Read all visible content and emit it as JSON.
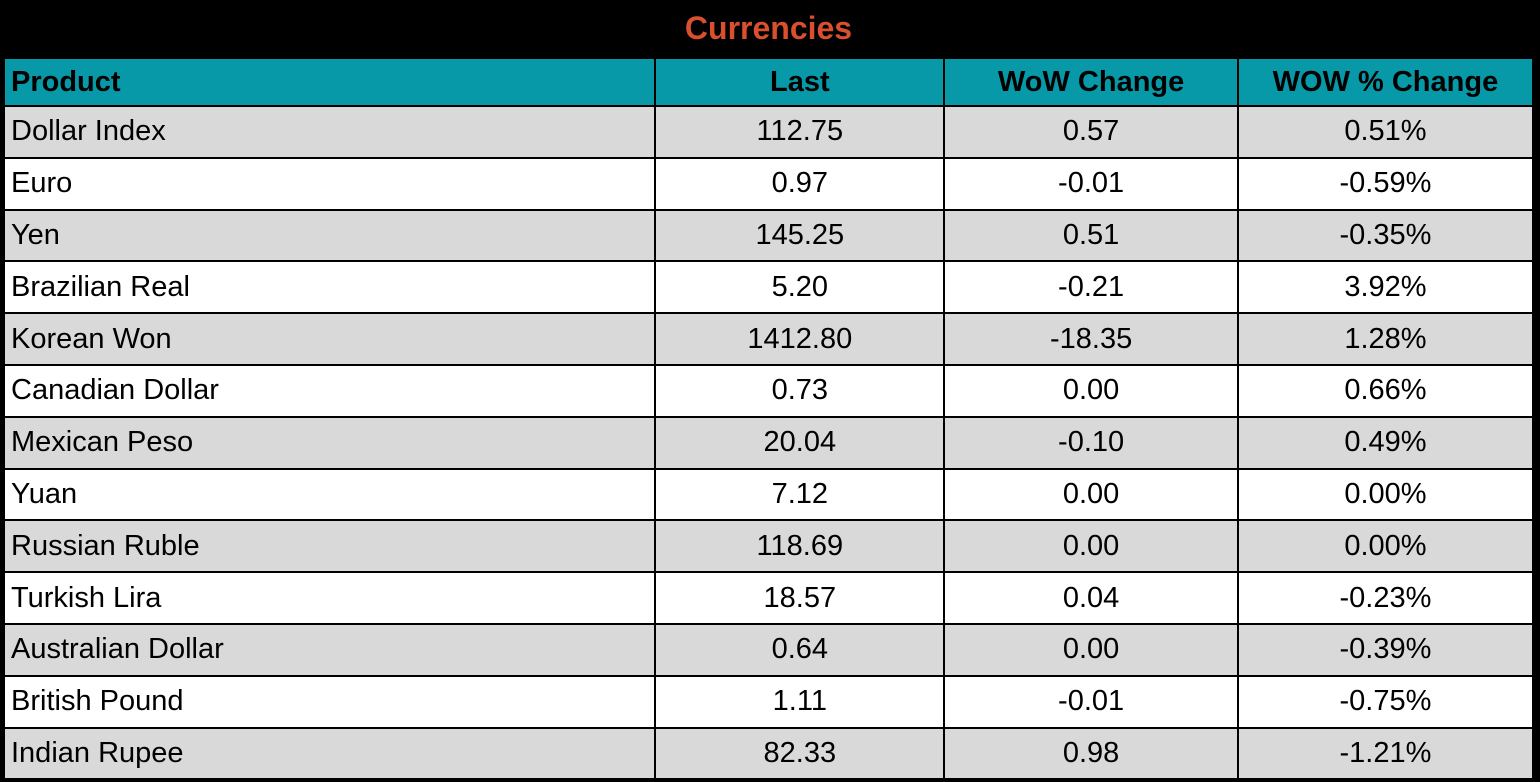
{
  "title_bar": {
    "title": "Currencies"
  },
  "colors": {
    "title_text": "#D8502E",
    "title_background": "#000000",
    "header_background": "#0899A8",
    "header_text": "#000000",
    "row_alt_background": "#D9D9D9",
    "row_background": "#FFFFFF",
    "grid_border": "#000000"
  },
  "chart_data": {
    "type": "table",
    "title": "Currencies",
    "columns": [
      "Product",
      "Last",
      "WoW Change",
      "WOW % Change"
    ],
    "rows": [
      [
        "Dollar Index",
        "112.75",
        "0.57",
        "0.51%"
      ],
      [
        "Euro",
        "0.97",
        "-0.01",
        "-0.59%"
      ],
      [
        "Yen",
        "145.25",
        "0.51",
        "-0.35%"
      ],
      [
        "Brazilian Real",
        "5.20",
        "-0.21",
        "3.92%"
      ],
      [
        "Korean Won",
        "1412.80",
        "-18.35",
        "1.28%"
      ],
      [
        "Canadian Dollar",
        "0.73",
        "0.00",
        "0.66%"
      ],
      [
        "Mexican Peso",
        "20.04",
        "-0.10",
        "0.49%"
      ],
      [
        "Yuan",
        "7.12",
        "0.00",
        "0.00%"
      ],
      [
        "Russian Ruble",
        "118.69",
        "0.00",
        "0.00%"
      ],
      [
        "Turkish Lira",
        "18.57",
        "0.04",
        "-0.23%"
      ],
      [
        "Australian Dollar",
        "0.64",
        "0.00",
        "-0.39%"
      ],
      [
        "British Pound",
        "1.11",
        "-0.01",
        "-0.75%"
      ],
      [
        "Indian Rupee",
        "82.33",
        "0.98",
        "-1.21%"
      ]
    ]
  }
}
